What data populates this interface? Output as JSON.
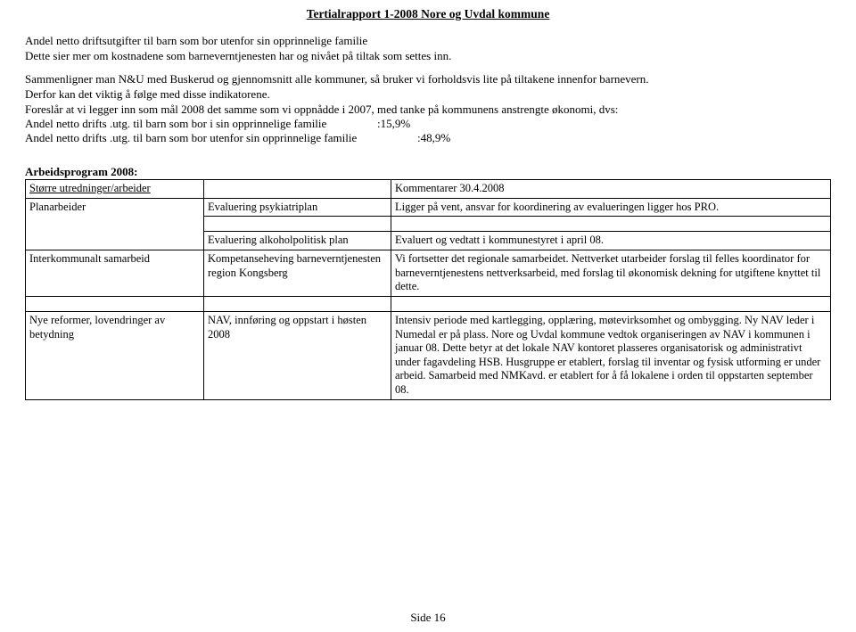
{
  "header": "Tertialrapport  1-2008  Nore og Uvdal kommune",
  "p1": "Andel netto driftsutgifter  til barn som bor utenfor sin opprinnelige familie\nDette sier mer om kostnadene som barneverntjenesten har og nivået på tiltak som settes inn.",
  "p2": "Sammenligner man N&U med Buskerud og gjennomsnitt alle kommuner, så bruker vi forholdsvis lite på tiltakene innenfor barnevern.\nDerfor kan det viktig å følge med disse indikatorene.\nForeslår at vi legger inn som mål 2008 det samme som vi oppnådde i 2007, med tanke på kommunens anstrengte økonomi, dvs:",
  "stat1_label": "Andel netto drifts .utg. til barn som bor i sin opprinnelige familie",
  "stat1_val": ":15,9%",
  "stat2_label": "Andel netto drifts .utg. til barn som bor utenfor sin opprinnelige familie",
  "stat2_val": ":48,9%",
  "section_title": "Arbeidsprogram 2008:",
  "table": {
    "head": {
      "c1": "Større utredninger/arbeider",
      "c2": "",
      "c3": "Kommentarer 30.4.2008"
    },
    "r1": {
      "c1": "Planarbeider",
      "c2": "Evaluering psykiatriplan",
      "c3": "Ligger på vent, ansvar for koordinering av evalueringen ligger hos PRO."
    },
    "r2": {
      "c1": "",
      "c2": "Evaluering alkoholpolitisk plan",
      "c3": "Evaluert og vedtatt i kommunestyret i april 08."
    },
    "r3": {
      "c1": "Interkommunalt samarbeid",
      "c2": "Kompetanseheving barneverntjenesten region Kongsberg",
      "c3": "Vi fortsetter det regionale samarbeidet. Nettverket utarbeider forslag til felles koordinator for barneverntjenestens nettverksarbeid, med forslag til økonomisk dekning for utgiftene knyttet til dette."
    },
    "r4": {
      "c1": "Nye reformer, lovendringer av betydning",
      "c2": "NAV, innføring og oppstart i høsten 2008",
      "c3": "Intensiv periode med kartlegging, opplæring, møtevirksomhet og ombygging. Ny NAV leder i Numedal er på plass. Nore og Uvdal kommune vedtok organiseringen av NAV i kommunen i januar 08. Dette betyr at det lokale NAV kontoret plasseres organisatorisk og administrativt under fagavdeling HSB. Husgruppe er etablert, forslag til inventar og fysisk utforming er under arbeid. Samarbeid med NMKavd. er etablert for å få lokalene i orden til oppstarten september 08."
    }
  },
  "footer": "Side 16"
}
